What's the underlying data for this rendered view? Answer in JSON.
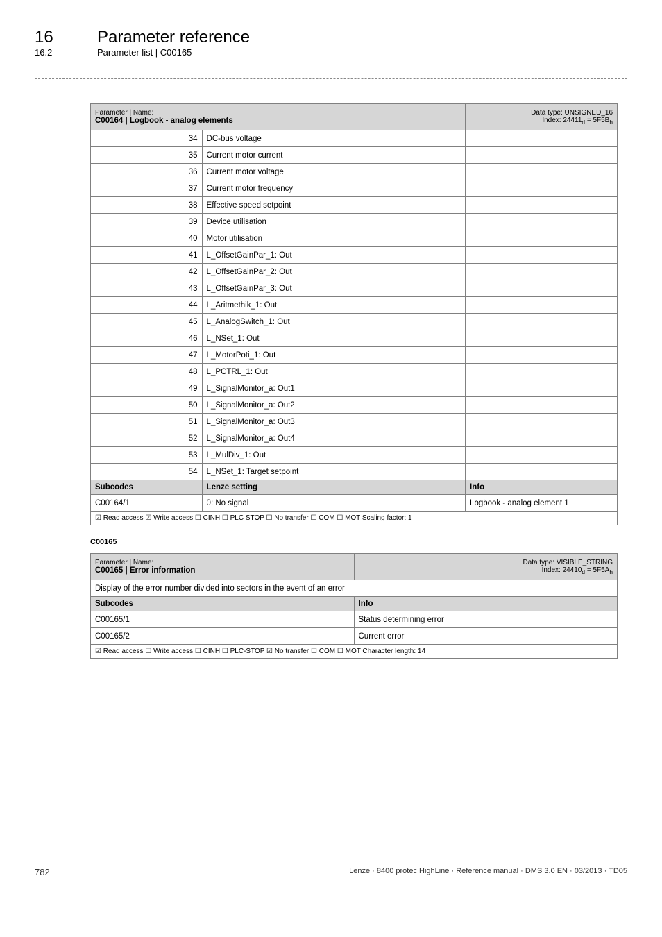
{
  "heading": {
    "section_number": "16",
    "section_title": "Parameter reference",
    "subsection_number": "16.2",
    "subsection_title": "Parameter list | C00165"
  },
  "table1": {
    "header": {
      "param_label": "Parameter | Name:",
      "param_name": "C00164 | Logbook - analog elements",
      "data_type": "Data type: UNSIGNED_16",
      "index": "Index: 24411d = 5F5Bh",
      "index_plain": "Index: 24411",
      "index_sub1": "d",
      "index_eq": " = 5F5B",
      "index_sub2": "h"
    },
    "rows": [
      {
        "n": "34",
        "name": "DC-bus voltage"
      },
      {
        "n": "35",
        "name": "Current motor current"
      },
      {
        "n": "36",
        "name": "Current motor voltage"
      },
      {
        "n": "37",
        "name": "Current motor frequency"
      },
      {
        "n": "38",
        "name": "Effective speed setpoint"
      },
      {
        "n": "39",
        "name": "Device utilisation"
      },
      {
        "n": "40",
        "name": "Motor utilisation"
      },
      {
        "n": "41",
        "name": "L_OffsetGainPar_1: Out"
      },
      {
        "n": "42",
        "name": "L_OffsetGainPar_2: Out"
      },
      {
        "n": "43",
        "name": "L_OffsetGainPar_3: Out"
      },
      {
        "n": "44",
        "name": "L_Aritmethik_1: Out"
      },
      {
        "n": "45",
        "name": "L_AnalogSwitch_1: Out"
      },
      {
        "n": "46",
        "name": "L_NSet_1: Out"
      },
      {
        "n": "47",
        "name": "L_MotorPoti_1: Out"
      },
      {
        "n": "48",
        "name": "L_PCTRL_1: Out"
      },
      {
        "n": "49",
        "name": "L_SignalMonitor_a: Out1"
      },
      {
        "n": "50",
        "name": "L_SignalMonitor_a: Out2"
      },
      {
        "n": "51",
        "name": "L_SignalMonitor_a: Out3"
      },
      {
        "n": "52",
        "name": "L_SignalMonitor_a: Out4"
      },
      {
        "n": "53",
        "name": "L_MulDiv_1: Out"
      },
      {
        "n": "54",
        "name": "L_NSet_1: Target setpoint"
      }
    ],
    "subcodes_header": {
      "subcodes": "Subcodes",
      "lenze": "Lenze setting",
      "info": "Info"
    },
    "subcode_row": {
      "code": "C00164/1",
      "setting": "0: No signal",
      "info": "Logbook - analog element 1"
    },
    "footer": "☑ Read access   ☑ Write access   ☐ CINH   ☐ PLC STOP   ☐ No transfer   ☐ COM   ☐ MOT    Scaling factor: 1"
  },
  "section_label": "C00165",
  "table2": {
    "header": {
      "param_label": "Parameter | Name:",
      "param_name": "C00165 | Error information",
      "data_type": "Data type: VISIBLE_STRING",
      "index_plain": "Index: 24410",
      "index_sub1": "d",
      "index_eq": " = 5F5A",
      "index_sub2": "h"
    },
    "description": "Display of the error number divided into sectors in the event of an error",
    "subcodes_header": {
      "subcodes": "Subcodes",
      "info": "Info"
    },
    "rows": [
      {
        "code": "C00165/1",
        "info": "Status determining error"
      },
      {
        "code": "C00165/2",
        "info": "Current error"
      }
    ],
    "footer": "☑ Read access   ☐ Write access   ☐ CINH   ☐ PLC-STOP   ☑ No transfer   ☐ COM   ☐ MOT     Character length: 14"
  },
  "page_footer": {
    "page": "782",
    "copyright": "Lenze · 8400 protec HighLine · Reference manual · DMS 3.0 EN · 03/2013 · TD05"
  }
}
